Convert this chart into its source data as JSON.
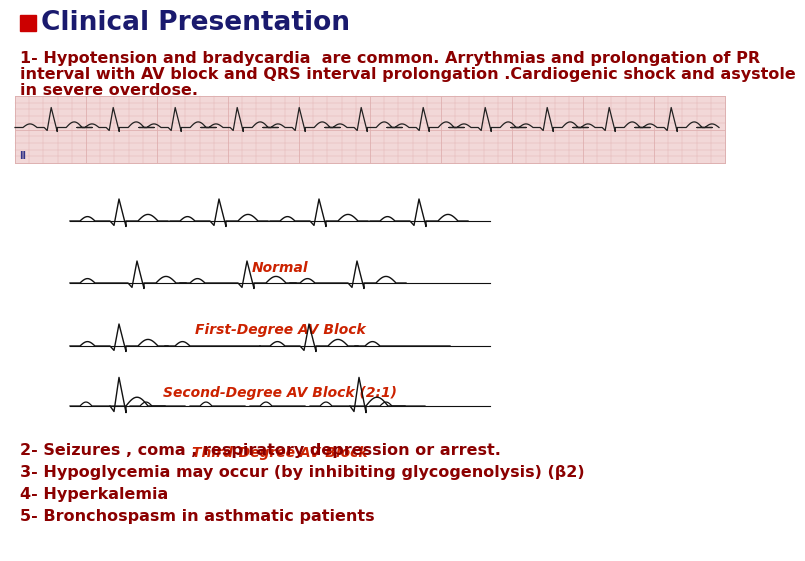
{
  "background_color": "#ffffff",
  "title_square_color": "#cc0000",
  "title_text": "Clinical Presentation",
  "title_color": "#1a1a6e",
  "title_fontsize": 19,
  "body_color": "#8b0000",
  "paragraph1_line1": "1- Hypotension and bradycardia  are common. Arrythmias and prolongation of PR",
  "paragraph1_line2": "interval with AV block and QRS interval prolongation .Cardiogenic shock and asystole",
  "paragraph1_line3": "in severe overdose.",
  "paragraph1_fontsize": 11.5,
  "ecg_strip_bg": "#f2d8d8",
  "ecg_grid_major": "#e0b0b0",
  "ecg_grid_minor": "#edd0d0",
  "ecg_line_color": "#222222",
  "label_normal": "Normal",
  "label_first": "First-Degree AV Block",
  "label_second": "Second-Degree AV Block (2:1)",
  "label_third": "Third-Degree AV Block",
  "label_color": "#cc2200",
  "label_fontsize": 10,
  "bullet2": "2- Seizures , coma , respiratory depression or arrest.",
  "bullet3": "3- Hypoglycemia may occur (by inhibiting glycogenolysis) (β2)",
  "bullet4": "4- Hyperkalemia",
  "bullet5": "5- Bronchospasm in asthmatic patients",
  "bullets_fontsize": 11.5,
  "ii_color": "#333388"
}
